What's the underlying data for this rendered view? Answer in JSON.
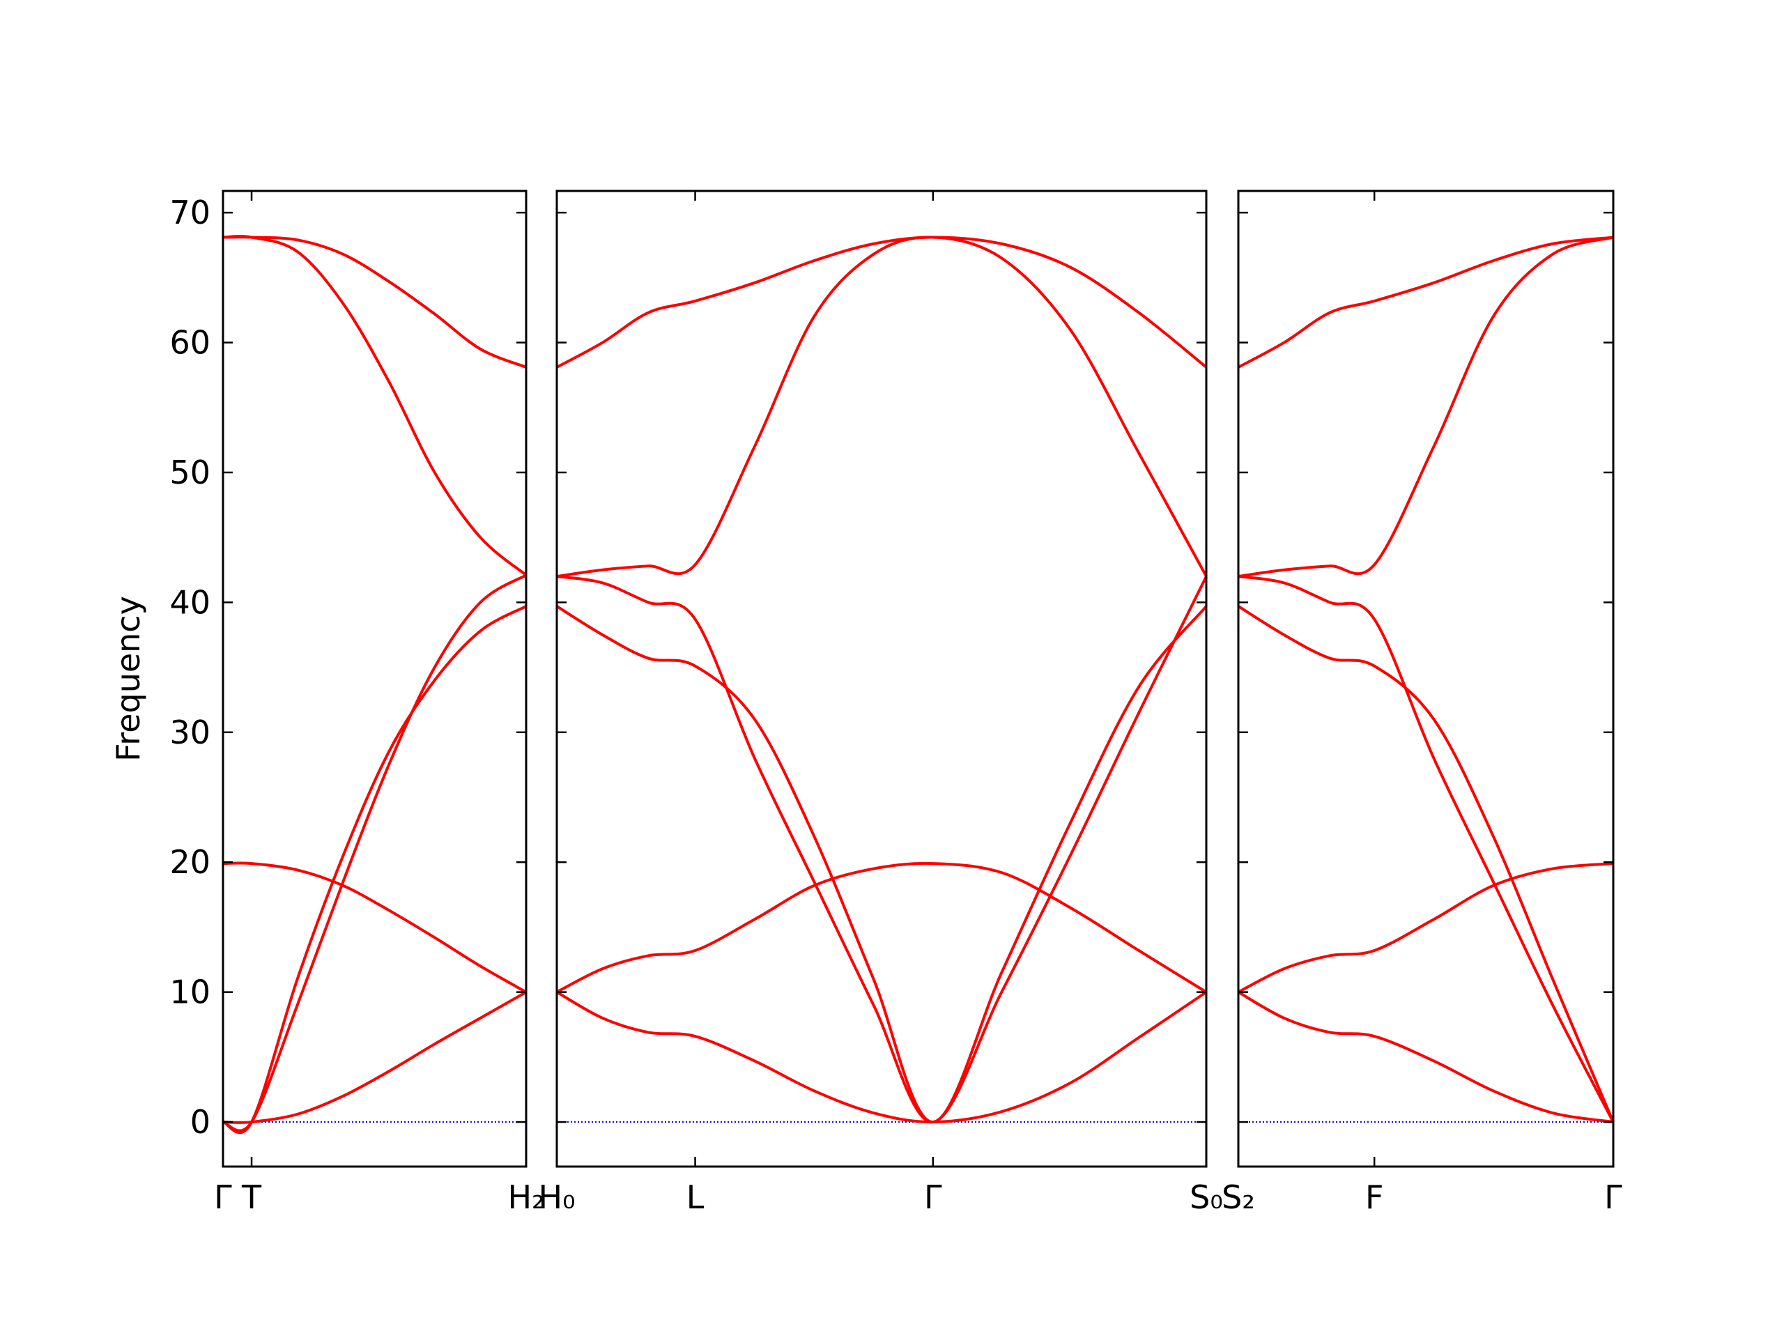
{
  "chart_data": [
    {
      "type": "line",
      "ylabel": "Frequency",
      "show_ytick_labels": true,
      "x": [
        0,
        0.025,
        0.065,
        0.105,
        0.145,
        0.185,
        0.225,
        0.265
      ],
      "series": [
        {
          "color": "#ff0000",
          "values": [
            68.1,
            68.1,
            67.9,
            66.8,
            64.7,
            62.2,
            59.5,
            58.1
          ]
        },
        {
          "color": "#ff0000",
          "values": [
            68.1,
            68.1,
            67.0,
            63.0,
            57.0,
            50.0,
            45.0,
            42.1
          ]
        },
        {
          "color": "#ff0000",
          "values": [
            0,
            0,
            9.0,
            18.5,
            27.5,
            35.0,
            40.0,
            42.1
          ]
        },
        {
          "color": "#ff0000",
          "values": [
            0,
            0,
            11.0,
            20.5,
            28.5,
            34.0,
            37.8,
            39.7
          ]
        },
        {
          "color": "#ff0000",
          "values": [
            19.9,
            19.9,
            19.4,
            18.2,
            16.3,
            14.2,
            12.0,
            10.0
          ]
        },
        {
          "color": "#ff0000",
          "values": [
            0,
            0,
            0.6,
            2.0,
            3.9,
            6.0,
            8.0,
            10.0
          ]
        }
      ],
      "xlim": [
        0,
        0.265
      ],
      "ylim": [
        -3.43,
        71.67
      ],
      "xticks": [
        {
          "value": 0,
          "label": "Γ"
        },
        {
          "value": 0.025,
          "label": "T"
        },
        {
          "value": 0.265,
          "label": "H₂"
        }
      ],
      "yticks": [
        0,
        10,
        20,
        30,
        40,
        50,
        60,
        70
      ],
      "hline": 0,
      "hline_color": "#0000ff"
    },
    {
      "type": "line",
      "show_ytick_labels": false,
      "x": [
        0.292,
        0.332,
        0.372,
        0.413,
        0.465,
        0.517,
        0.569,
        0.621,
        0.681,
        0.741,
        0.801,
        0.86
      ],
      "series": [
        {
          "color": "#ff0000",
          "values": [
            58.1,
            60.0,
            62.3,
            63.2,
            64.6,
            66.3,
            67.6,
            68.1,
            67.6,
            65.8,
            62.3,
            58.1
          ]
        },
        {
          "color": "#ff0000",
          "values": [
            42.0,
            42.5,
            42.8,
            42.9,
            52.0,
            62.0,
            66.8,
            68.1,
            66.5,
            61.0,
            51.5,
            42.0
          ]
        },
        {
          "color": "#ff0000",
          "values": [
            42.0,
            41.5,
            40.0,
            38.7,
            28.0,
            18.5,
            9.0,
            0,
            10.0,
            20.5,
            31.5,
            42.0
          ]
        },
        {
          "color": "#ff0000",
          "values": [
            39.7,
            37.5,
            35.7,
            35.1,
            31.0,
            22.0,
            11.0,
            0,
            11.5,
            23.0,
            33.5,
            39.7
          ]
        },
        {
          "color": "#ff0000",
          "values": [
            10.0,
            11.8,
            12.8,
            13.2,
            15.6,
            18.2,
            19.5,
            19.9,
            19.2,
            16.5,
            13.2,
            10.0
          ]
        },
        {
          "color": "#ff0000",
          "values": [
            10.0,
            8.0,
            6.9,
            6.6,
            4.7,
            2.4,
            0.7,
            0,
            0.8,
            3.0,
            6.5,
            10.0
          ]
        }
      ],
      "xlim": [
        0.292,
        0.86
      ],
      "ylim": [
        -3.43,
        71.67
      ],
      "xticks": [
        {
          "value": 0.292,
          "label": "H₀"
        },
        {
          "value": 0.413,
          "label": "L"
        },
        {
          "value": 0.621,
          "label": "Γ"
        },
        {
          "value": 0.86,
          "label": "S₀"
        }
      ],
      "yticks": [
        0,
        10,
        20,
        30,
        40,
        50,
        60,
        70
      ],
      "hline": 0,
      "hline_color": "#0000ff"
    },
    {
      "type": "line",
      "show_ytick_labels": false,
      "x": [
        0.888,
        0.928,
        0.968,
        1.007,
        1.059,
        1.111,
        1.163,
        1.216
      ],
      "series": [
        {
          "color": "#ff0000",
          "values": [
            58.1,
            60.0,
            62.3,
            63.2,
            64.6,
            66.3,
            67.6,
            68.1
          ]
        },
        {
          "color": "#ff0000",
          "values": [
            42.0,
            42.5,
            42.8,
            42.9,
            52.0,
            62.0,
            66.8,
            68.1
          ]
        },
        {
          "color": "#ff0000",
          "values": [
            42.0,
            41.5,
            40.0,
            38.7,
            28.0,
            18.5,
            9.0,
            0
          ]
        },
        {
          "color": "#ff0000",
          "values": [
            39.7,
            37.5,
            35.7,
            35.1,
            31.0,
            22.0,
            11.0,
            0
          ]
        },
        {
          "color": "#ff0000",
          "values": [
            10.0,
            11.8,
            12.8,
            13.2,
            15.6,
            18.2,
            19.5,
            19.9
          ]
        },
        {
          "color": "#ff0000",
          "values": [
            10.0,
            8.0,
            6.9,
            6.6,
            4.7,
            2.4,
            0.7,
            0
          ]
        }
      ],
      "xlim": [
        0.888,
        1.216
      ],
      "ylim": [
        -3.43,
        71.67
      ],
      "xticks": [
        {
          "value": 0.888,
          "label": "S₂"
        },
        {
          "value": 1.007,
          "label": "F"
        },
        {
          "value": 1.216,
          "label": "Γ"
        }
      ],
      "yticks": [
        0,
        10,
        20,
        30,
        40,
        50,
        60,
        70
      ],
      "hline": 0,
      "hline_color": "#0000ff"
    }
  ]
}
